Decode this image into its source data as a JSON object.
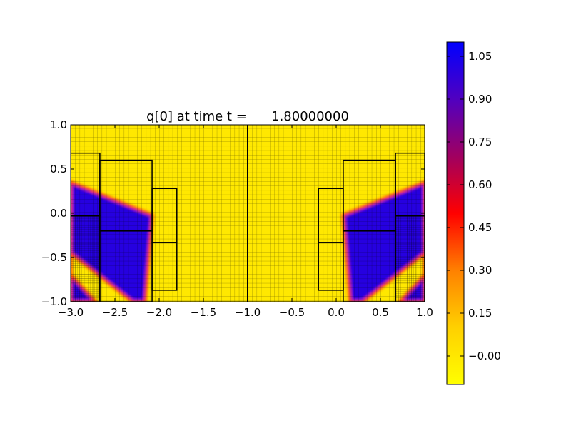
{
  "chart_data": {
    "type": "heatmap",
    "title": "q[0] at time t =      1.80000000",
    "xlabel": "",
    "ylabel": "",
    "xlim": [
      -3.0,
      1.0
    ],
    "ylim": [
      -1.0,
      1.0
    ],
    "x_ticks": [
      "−3.0",
      "−2.5",
      "−2.0",
      "−1.5",
      "−1.0",
      "−0.5",
      "0.0",
      "0.5",
      "1.0"
    ],
    "x_tick_values": [
      -3.0,
      -2.5,
      -2.0,
      -1.5,
      -1.0,
      -0.5,
      0.0,
      0.5,
      1.0
    ],
    "y_ticks": [
      "−1.0",
      "−0.5",
      "0.0",
      "0.5",
      "1.0"
    ],
    "y_tick_values": [
      -1.0,
      -0.5,
      0.0,
      0.5,
      1.0
    ],
    "colormap": [
      "#ffff00",
      "#ffd000",
      "#ff8000",
      "#ff0000",
      "#a00060",
      "#5000c0",
      "#0000ff"
    ],
    "background_value": 0.0,
    "fill_value": 1.0,
    "grid": true,
    "color_range": [
      -0.1,
      1.1
    ],
    "colorbar": {
      "ticks": [
        "−0.00",
        "0.15",
        "0.30",
        "0.45",
        "0.60",
        "0.75",
        "0.90",
        "1.05"
      ],
      "tick_values": [
        0.0,
        0.15,
        0.3,
        0.45,
        0.6,
        0.75,
        0.9,
        1.05
      ]
    },
    "patches": [
      {
        "name": "left-top-a",
        "x": [
          -3.0,
          -2.67
        ],
        "y": [
          -0.03,
          0.68
        ]
      },
      {
        "name": "left-bot-a",
        "x": [
          -3.0,
          -2.67
        ],
        "y": [
          -1.0,
          -0.03
        ]
      },
      {
        "name": "left-top-b",
        "x": [
          -2.67,
          -2.08
        ],
        "y": [
          -0.2,
          0.6
        ]
      },
      {
        "name": "left-bot-b",
        "x": [
          -2.67,
          -2.08
        ],
        "y": [
          -1.0,
          -0.2
        ]
      },
      {
        "name": "left-top-c",
        "x": [
          -2.08,
          -1.8
        ],
        "y": [
          -0.33,
          0.28
        ]
      },
      {
        "name": "left-bot-c",
        "x": [
          -2.08,
          -1.8
        ],
        "y": [
          -0.87,
          -0.33
        ]
      },
      {
        "name": "divider",
        "x": [
          -1.0,
          -1.0
        ],
        "y": [
          -1.0,
          1.0
        ]
      },
      {
        "name": "right-top-c",
        "x": [
          -0.2,
          0.08
        ],
        "y": [
          -0.33,
          0.28
        ]
      },
      {
        "name": "right-bot-c",
        "x": [
          -0.2,
          0.08
        ],
        "y": [
          -0.87,
          -0.33
        ]
      },
      {
        "name": "right-top-b",
        "x": [
          0.08,
          0.67
        ],
        "y": [
          -0.2,
          0.6
        ]
      },
      {
        "name": "right-bot-b",
        "x": [
          0.08,
          0.67
        ],
        "y": [
          -1.0,
          -0.2
        ]
      },
      {
        "name": "right-top-a",
        "x": [
          0.67,
          1.0
        ],
        "y": [
          -0.03,
          0.68
        ]
      },
      {
        "name": "right-bot-a",
        "x": [
          0.67,
          1.0
        ],
        "y": [
          -1.0,
          -0.03
        ]
      }
    ],
    "wedges": [
      {
        "name": "left-wedge",
        "points": [
          [
            -3.0,
            0.35
          ],
          [
            -2.08,
            -0.02
          ],
          [
            -2.16,
            -1.0
          ],
          [
            -2.3,
            -1.0
          ],
          [
            -3.0,
            -0.45
          ],
          [
            -3.0,
            -1.0
          ],
          [
            -2.72,
            -1.0
          ],
          [
            -3.0,
            -0.7
          ],
          [
            -3.0,
            0.35
          ]
        ]
      },
      {
        "name": "right-wedge",
        "points": [
          [
            1.0,
            0.35
          ],
          [
            0.08,
            -0.02
          ],
          [
            0.16,
            -1.0
          ],
          [
            0.3,
            -1.0
          ],
          [
            1.0,
            -0.45
          ],
          [
            1.0,
            -1.0
          ],
          [
            0.72,
            -1.0
          ],
          [
            1.0,
            -0.7
          ],
          [
            1.0,
            0.35
          ]
        ]
      }
    ]
  }
}
